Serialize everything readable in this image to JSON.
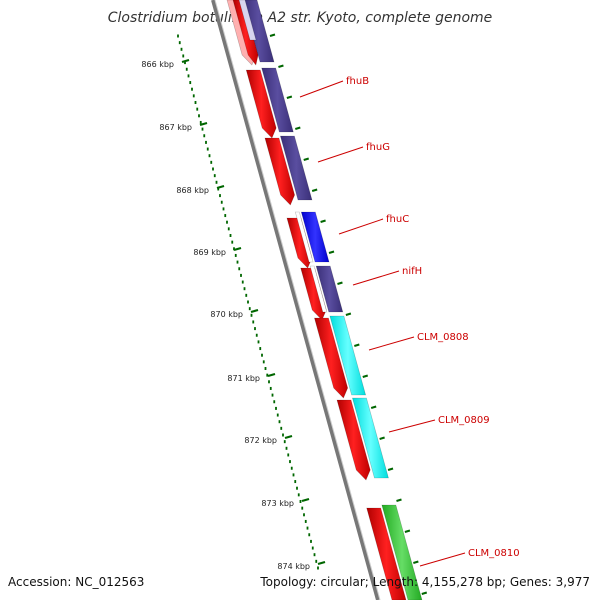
{
  "title": "Clostridium botulinum A2 str. Kyoto, complete genome",
  "footer": {
    "accession": "Accession: NC_012563",
    "summary": "Topology: circular; Length: 4,155,278 bp; Genes: 3,977"
  },
  "scale": {
    "ticks": [
      "866 kbp",
      "867 kbp",
      "868 kbp",
      "869 kbp",
      "870 kbp",
      "871 kbp",
      "872 kbp",
      "873 kbp",
      "874 kbp"
    ]
  },
  "genes": [
    {
      "name": "fhuB"
    },
    {
      "name": "fhuG"
    },
    {
      "name": "fhuC"
    },
    {
      "name": "nifH"
    },
    {
      "name": "CLM_0808"
    },
    {
      "name": "CLM_0809"
    },
    {
      "name": "CLM_0810"
    }
  ],
  "colors": {
    "cds_forward": "#ff0000",
    "cog_dark": "#4b3d8f",
    "cog_blue": "#0000ff",
    "cog_cyan": "#00ffff",
    "cog_green": "#33cc33",
    "backbone": "#888888",
    "ticks": "#006600",
    "label_line": "#cc0000"
  }
}
